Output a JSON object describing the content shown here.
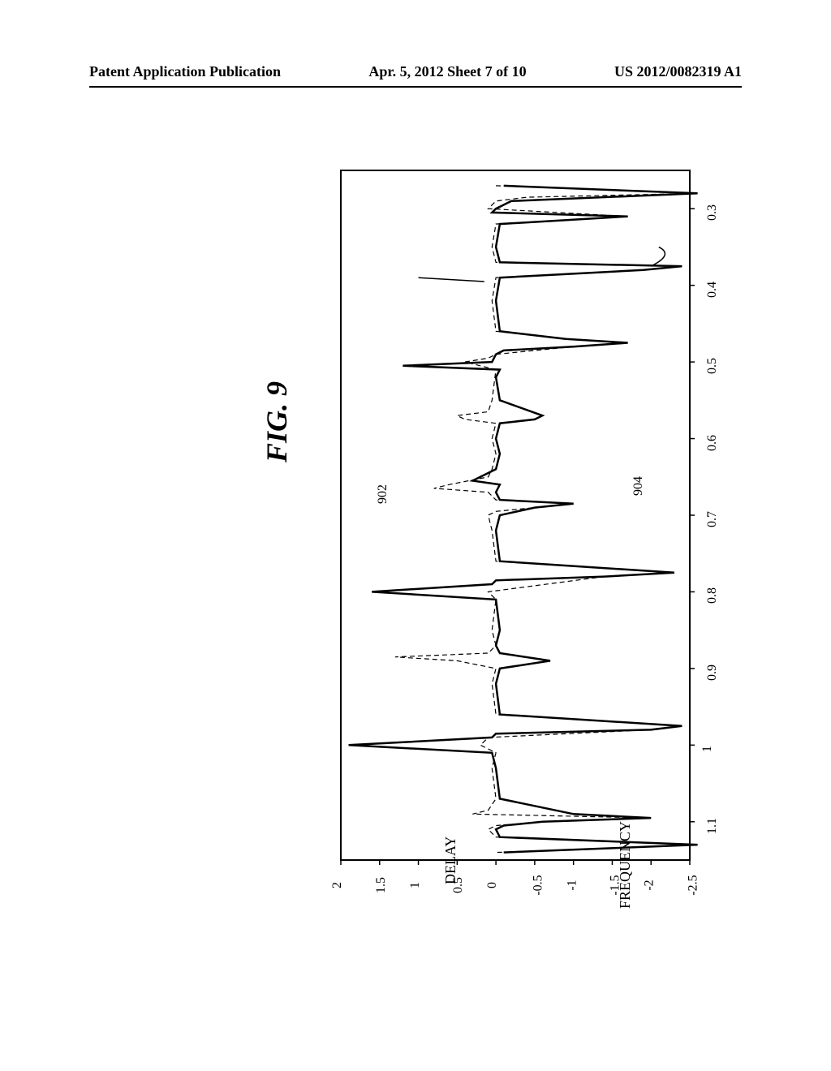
{
  "header": {
    "left": "Patent Application Publication",
    "center": "Apr. 5, 2012  Sheet 7 of 10",
    "right": "US 2012/0082319 A1"
  },
  "figure": {
    "label": "FIG. 9",
    "xlabel": "DELAY",
    "ylabel": "FREQUENCY",
    "callouts": {
      "c902": "902",
      "c904": "904"
    },
    "chart": {
      "type": "line",
      "background_color": "#ffffff",
      "axis_color": "#000000",
      "x_axis": {
        "label": "DELAY",
        "min": -2.5,
        "max": 2.0,
        "ticks": [
          2,
          1.5,
          1,
          0.5,
          0,
          -0.5,
          -1,
          -1.5,
          -2,
          -2.5
        ],
        "tick_labels": [
          "2",
          "1.5",
          "1",
          "0.5",
          "0",
          "-0.5",
          "-1",
          "-1.5",
          "-2",
          "-2.5"
        ]
      },
      "y_axis": {
        "label": "FREQUENCY",
        "min": 0.25,
        "max": 1.15,
        "ticks": [
          0.3,
          0.4,
          0.5,
          0.6,
          0.7,
          0.8,
          0.9,
          1.0,
          1.1
        ],
        "tick_labels": [
          "0.3",
          "0.4",
          "0.5",
          "0.6",
          "0.7",
          "0.8",
          "0.9",
          "1",
          "1.1"
        ]
      },
      "series": [
        {
          "name": "filter-response-902",
          "style": "solid",
          "color": "#000000",
          "line_width": 2.5,
          "freq": [
            0.27,
            0.28,
            0.29,
            0.3,
            0.305,
            0.31,
            0.32,
            0.35,
            0.37,
            0.375,
            0.38,
            0.39,
            0.42,
            0.46,
            0.47,
            0.475,
            0.48,
            0.485,
            0.49,
            0.5,
            0.505,
            0.51,
            0.52,
            0.55,
            0.57,
            0.575,
            0.58,
            0.6,
            0.62,
            0.64,
            0.655,
            0.66,
            0.67,
            0.68,
            0.685,
            0.69,
            0.7,
            0.72,
            0.76,
            0.775,
            0.78,
            0.785,
            0.79,
            0.8,
            0.81,
            0.85,
            0.87,
            0.88,
            0.89,
            0.9,
            0.92,
            0.96,
            0.975,
            0.98,
            0.985,
            0.99,
            1.0,
            1.01,
            1.03,
            1.07,
            1.09,
            1.095,
            1.1,
            1.105,
            1.11,
            1.12,
            1.13,
            1.14
          ],
          "delay": [
            -0.1,
            -2.6,
            -0.2,
            0.0,
            0.05,
            -1.7,
            -0.05,
            0.0,
            -0.05,
            -2.4,
            -1.9,
            -0.05,
            0.0,
            -0.05,
            -0.9,
            -1.7,
            -1.0,
            -0.1,
            0.0,
            0.05,
            1.2,
            -0.05,
            0.0,
            -0.05,
            -0.6,
            -0.5,
            -0.05,
            0.0,
            -0.05,
            0.0,
            0.3,
            -0.05,
            0.0,
            -0.05,
            -1.0,
            -0.5,
            -0.05,
            0.0,
            -0.05,
            -2.3,
            -1.4,
            0.0,
            0.05,
            1.6,
            0.0,
            -0.05,
            0.0,
            -0.05,
            -0.7,
            -0.05,
            0.0,
            -0.05,
            -2.4,
            -2.0,
            0.0,
            0.05,
            1.9,
            0.05,
            0.0,
            -0.05,
            -1.0,
            -2.0,
            -0.6,
            -0.1,
            0.0,
            -0.05,
            -2.6,
            -0.1
          ]
        },
        {
          "name": "filter-response-904",
          "style": "dashed",
          "color": "#000000",
          "line_width": 1.2,
          "freq": [
            0.27,
            0.28,
            0.285,
            0.29,
            0.3,
            0.31,
            0.32,
            0.35,
            0.37,
            0.375,
            0.38,
            0.39,
            0.42,
            0.46,
            0.47,
            0.475,
            0.48,
            0.49,
            0.495,
            0.5,
            0.51,
            0.55,
            0.565,
            0.57,
            0.575,
            0.58,
            0.6,
            0.62,
            0.64,
            0.65,
            0.66,
            0.665,
            0.67,
            0.68,
            0.685,
            0.69,
            0.695,
            0.7,
            0.72,
            0.76,
            0.775,
            0.78,
            0.8,
            0.81,
            0.85,
            0.87,
            0.88,
            0.885,
            0.89,
            0.9,
            0.92,
            0.96,
            0.975,
            0.98,
            0.99,
            1.0,
            1.01,
            1.03,
            1.07,
            1.085,
            1.09,
            1.095,
            1.1,
            1.105,
            1.11,
            1.12,
            1.13,
            1.14
          ],
          "delay": [
            0.0,
            -2.6,
            -0.4,
            0.0,
            0.1,
            -1.7,
            0.0,
            0.05,
            0.0,
            -2.4,
            -1.9,
            0.0,
            0.05,
            0.0,
            -0.9,
            -1.7,
            -1.0,
            0.0,
            0.1,
            0.4,
            0.0,
            0.05,
            0.1,
            0.5,
            0.4,
            0.0,
            0.05,
            0.0,
            0.05,
            0.1,
            0.6,
            0.8,
            0.1,
            0.0,
            -1.0,
            -0.5,
            0.0,
            0.1,
            0.05,
            0.0,
            -2.3,
            -1.4,
            0.1,
            0.0,
            0.05,
            0.0,
            0.1,
            1.3,
            0.5,
            0.0,
            0.05,
            0.0,
            -2.4,
            -2.0,
            0.1,
            0.2,
            0.0,
            0.05,
            0.0,
            0.1,
            0.3,
            -2.0,
            -0.6,
            0.0,
            0.1,
            0.0,
            -2.6,
            0.0
          ]
        }
      ]
    }
  }
}
